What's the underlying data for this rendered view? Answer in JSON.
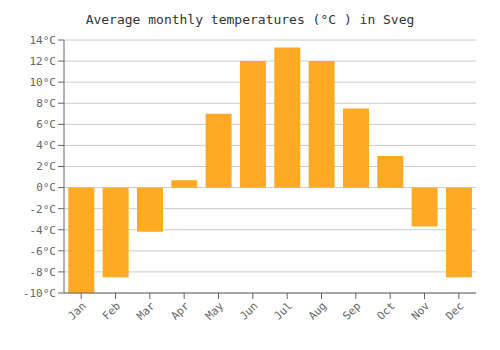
{
  "chart_data": {
    "type": "bar",
    "title": "Average monthly temperatures (°C ) in Sveg",
    "categories": [
      "Jan",
      "Feb",
      "Mar",
      "Apr",
      "May",
      "Jun",
      "Jul",
      "Aug",
      "Sep",
      "Oct",
      "Nov",
      "Dec"
    ],
    "values": [
      -10.0,
      -8.5,
      -4.2,
      0.7,
      7.0,
      12.0,
      13.3,
      12.0,
      7.5,
      3.0,
      -3.7,
      -8.5
    ],
    "color": "#FFAA22",
    "ylim": [
      -10,
      14
    ],
    "yticks": [
      {
        "value": -10,
        "label": "-10°C"
      },
      {
        "value": -8,
        "label": "-8°C"
      },
      {
        "value": -6,
        "label": "-6°C"
      },
      {
        "value": -4,
        "label": "-4°C"
      },
      {
        "value": -2,
        "label": "-2°C"
      },
      {
        "value": 0,
        "label": "0°C"
      },
      {
        "value": 2,
        "label": "2°C"
      },
      {
        "value": 4,
        "label": "4°C"
      },
      {
        "value": 6,
        "label": "6°C"
      },
      {
        "value": 8,
        "label": "8°C"
      },
      {
        "value": 10,
        "label": "10°C"
      },
      {
        "value": 12,
        "label": "12°C"
      },
      {
        "value": 14,
        "label": "14°C"
      }
    ],
    "grid": true
  }
}
